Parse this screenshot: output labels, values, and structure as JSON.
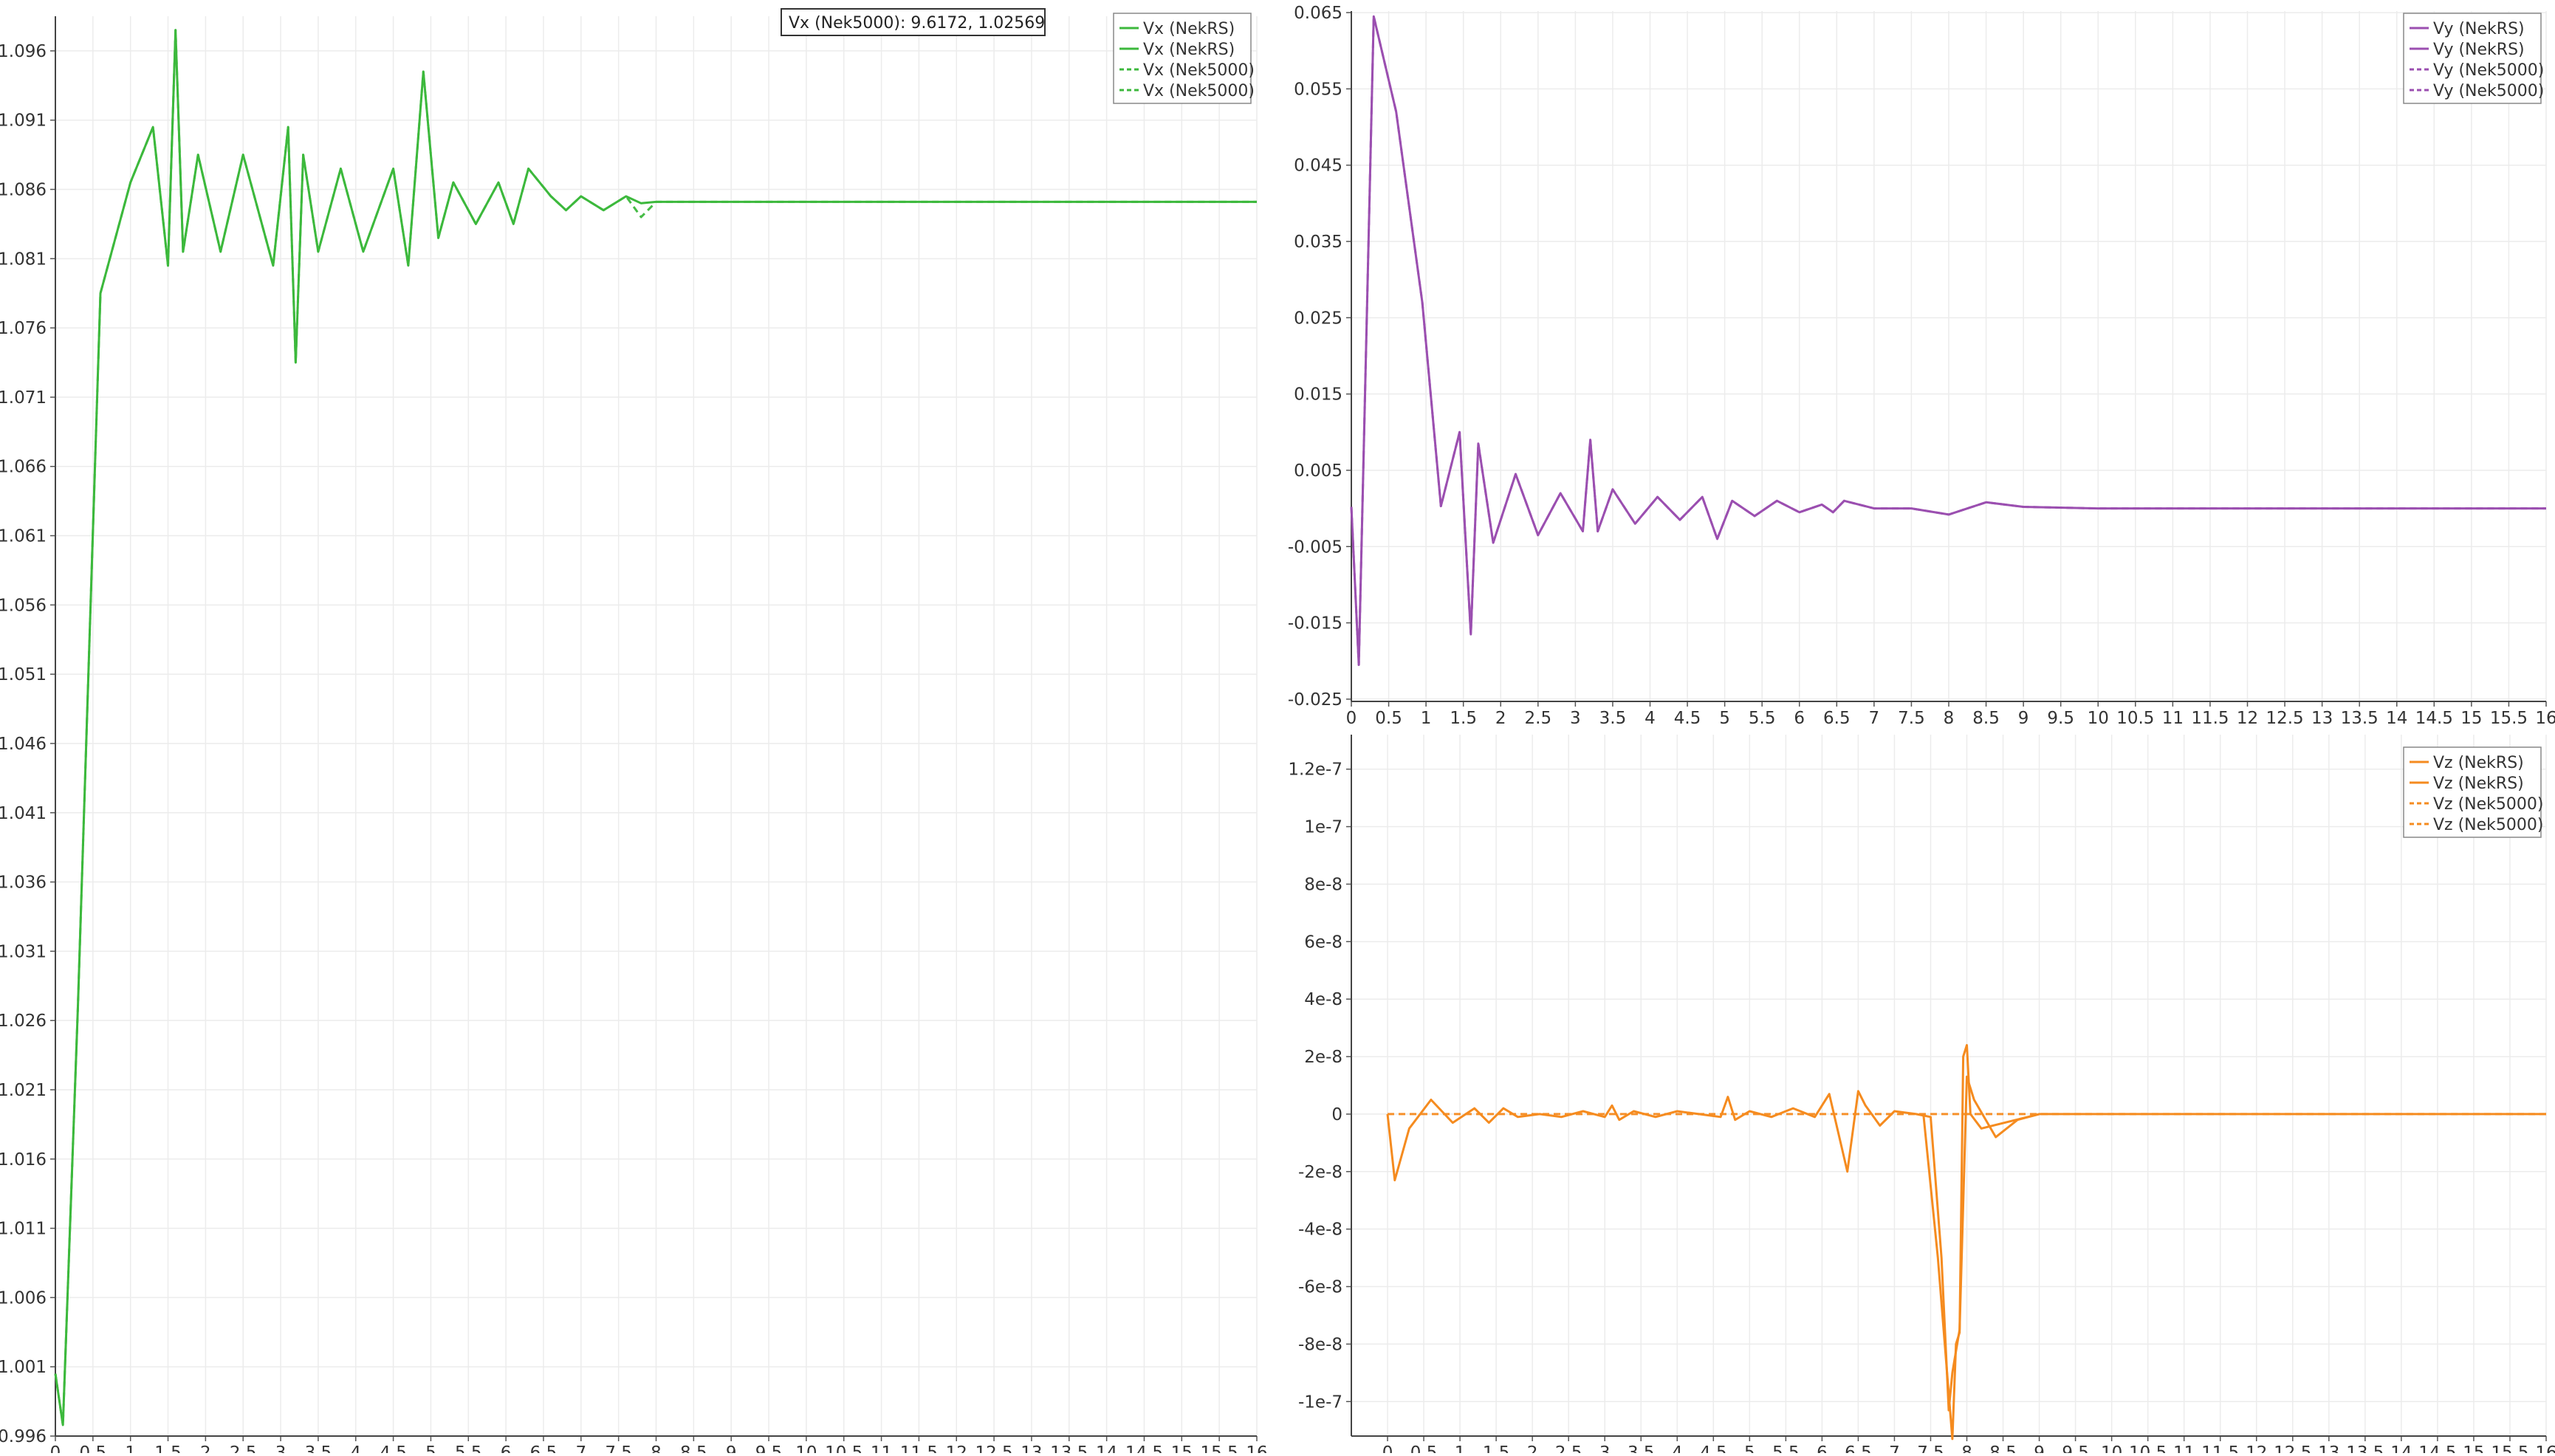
{
  "tooltip": {
    "text": "Vx (Nek5000): 9.6172,  1.02569"
  },
  "chart_data": [
    {
      "id": "vx",
      "type": "line",
      "color": "#3cb83c",
      "x_ticks": [
        "0",
        "0.5",
        "1",
        "1.5",
        "2",
        "2.5",
        "3",
        "3.5",
        "4",
        "4.5",
        "5",
        "5.5",
        "6",
        "6.5",
        "7",
        "7.5",
        "8",
        "8.5",
        "9",
        "9.5",
        "10",
        "10.5",
        "11",
        "11.5",
        "12",
        "12.5",
        "13",
        "13.5",
        "14",
        "14.5",
        "15",
        "15.5",
        "16"
      ],
      "y_ticks": [
        "0.996",
        "1.001",
        "1.006",
        "1.011",
        "1.016",
        "1.021",
        "1.026",
        "1.031",
        "1.036",
        "1.041",
        "1.046",
        "1.051",
        "1.056",
        "1.061",
        "1.066",
        "1.071",
        "1.076",
        "1.081",
        "1.086",
        "1.091",
        "1.096"
      ],
      "xlim": [
        0,
        16
      ],
      "ylim": [
        0.996,
        1.0985
      ],
      "legend": [
        "Vx (NekRS)",
        "Vx (NekRS)",
        "Vx (Nek5000)",
        "Vx (Nek5000)"
      ],
      "series": [
        {
          "name": "Vx (NekRS)",
          "style": "solid",
          "x": [
            0,
            0.1,
            0.3,
            0.6,
            1,
            1.3,
            1.5,
            1.6,
            1.7,
            1.9,
            2.2,
            2.5,
            2.9,
            3.1,
            3.2,
            3.3,
            3.5,
            3.8,
            4.1,
            4.5,
            4.7,
            4.9,
            5.1,
            5.3,
            5.6,
            5.9,
            6.1,
            6.3,
            6.6,
            6.8,
            7.0,
            7.3,
            7.6,
            7.8,
            8.0,
            8.2,
            9.0,
            10,
            12,
            14,
            16
          ],
          "y": [
            1.0005,
            0.9968,
            1.027,
            1.0785,
            1.0865,
            1.0905,
            1.0805,
            1.0975,
            1.0815,
            1.0885,
            1.0815,
            1.0885,
            1.0805,
            1.0905,
            1.0735,
            1.0885,
            1.0815,
            1.0875,
            1.0815,
            1.0875,
            1.0805,
            1.0945,
            1.0825,
            1.0865,
            1.0835,
            1.0865,
            1.0835,
            1.0875,
            1.0855,
            1.0845,
            1.0855,
            1.0845,
            1.0855,
            1.085,
            1.0851,
            1.0851,
            1.0851,
            1.0851,
            1.0851,
            1.0851,
            1.0851
          ]
        },
        {
          "name": "Vx (Nek5000)",
          "style": "dashed",
          "x": [
            0,
            0.1,
            0.3,
            0.6,
            1,
            1.3,
            1.5,
            1.6,
            1.7,
            1.9,
            2.2,
            2.5,
            2.9,
            3.1,
            3.2,
            3.3,
            3.5,
            3.8,
            4.1,
            4.5,
            4.7,
            4.9,
            5.1,
            5.3,
            5.6,
            5.9,
            6.1,
            6.3,
            6.6,
            6.8,
            7.0,
            7.3,
            7.6,
            7.8,
            8.0,
            8.2,
            9.0,
            10,
            12,
            14,
            16
          ],
          "y": [
            1.0005,
            0.9968,
            1.027,
            1.0785,
            1.0865,
            1.0905,
            1.0805,
            1.0975,
            1.0815,
            1.0885,
            1.0815,
            1.0885,
            1.0805,
            1.0905,
            1.0735,
            1.0885,
            1.0815,
            1.0875,
            1.0815,
            1.0875,
            1.0805,
            1.0945,
            1.0825,
            1.0865,
            1.0835,
            1.0865,
            1.0835,
            1.0875,
            1.0855,
            1.0845,
            1.0855,
            1.0845,
            1.0855,
            1.084,
            1.0851,
            1.0851,
            1.0851,
            1.0851,
            1.0851,
            1.0851,
            1.0851
          ]
        }
      ]
    },
    {
      "id": "vy",
      "type": "line",
      "color": "#9b4fb0",
      "x_ticks": [
        "0",
        "0.5",
        "1",
        "1.5",
        "2",
        "2.5",
        "3",
        "3.5",
        "4",
        "4.5",
        "5",
        "5.5",
        "6",
        "6.5",
        "7",
        "7.5",
        "8",
        "8.5",
        "9",
        "9.5",
        "10",
        "10.5",
        "11",
        "11.5",
        "12",
        "12.5",
        "13",
        "13.5",
        "14",
        "14.5",
        "15",
        "15.5",
        "16"
      ],
      "y_ticks": [
        "-0.025",
        "-0.015",
        "-0.005",
        "0.005",
        "0.015",
        "0.025",
        "0.035",
        "0.045",
        "0.055",
        "0.065"
      ],
      "xlim": [
        0,
        16
      ],
      "ylim": [
        -0.0253,
        0.0652
      ],
      "legend": [
        "Vy (NekRS)",
        "Vy (NekRS)",
        "Vy (Nek5000)",
        "Vy (Nek5000)"
      ],
      "series": [
        {
          "name": "Vy (NekRS)",
          "style": "solid",
          "x": [
            0,
            0.1,
            0.3,
            0.6,
            0.95,
            1.2,
            1.45,
            1.6,
            1.7,
            1.9,
            2.2,
            2.5,
            2.8,
            3.1,
            3.2,
            3.3,
            3.5,
            3.8,
            4.1,
            4.4,
            4.7,
            4.9,
            5.1,
            5.4,
            5.7,
            6.0,
            6.3,
            6.45,
            6.6,
            7.0,
            7.5,
            8.0,
            8.5,
            9.0,
            10,
            12,
            14,
            16
          ],
          "y": [
            0.0002,
            -0.0205,
            0.0645,
            0.052,
            0.027,
            0.0003,
            0.01,
            -0.0165,
            0.0085,
            -0.0045,
            0.0045,
            -0.0035,
            0.002,
            -0.003,
            0.009,
            -0.003,
            0.0025,
            -0.002,
            0.0015,
            -0.0015,
            0.0015,
            -0.004,
            0.001,
            -0.001,
            0.001,
            -0.0005,
            0.0005,
            -0.0005,
            0.001,
            0.0,
            0.0,
            -0.0008,
            0.0008,
            0.0002,
            0.0,
            0.0,
            0.0,
            0.0
          ]
        },
        {
          "name": "Vy (Nek5000)",
          "style": "dashed",
          "x": [
            0,
            0.1,
            0.3,
            0.6,
            0.95,
            1.2,
            1.45,
            1.6,
            1.7,
            1.9,
            2.2,
            2.5,
            2.8,
            3.1,
            3.2,
            3.3,
            3.5,
            3.8,
            4.1,
            4.4,
            4.7,
            4.9,
            5.1,
            5.4,
            5.7,
            6.0,
            6.3,
            6.45,
            6.6,
            7.0,
            7.5,
            8.0,
            8.5,
            9.0,
            10,
            12,
            14,
            16
          ],
          "y": [
            0.0002,
            -0.0205,
            0.0645,
            0.052,
            0.027,
            0.0003,
            0.01,
            -0.0165,
            0.0085,
            -0.0045,
            0.0045,
            -0.0035,
            0.002,
            -0.003,
            0.009,
            -0.003,
            0.0025,
            -0.002,
            0.0015,
            -0.0015,
            0.0015,
            -0.004,
            0.001,
            -0.001,
            0.001,
            -0.0005,
            0.0005,
            -0.0005,
            0.001,
            0.0,
            0.0,
            -0.0008,
            0.0008,
            0.0002,
            0.0,
            0.0,
            0.0,
            0.0
          ]
        }
      ]
    },
    {
      "id": "vz",
      "type": "line",
      "color": "#f58b1f",
      "x_ticks": [
        "0",
        "0.5",
        "1",
        "1.5",
        "2",
        "2.5",
        "3",
        "3.5",
        "4",
        "4.5",
        "5",
        "5.5",
        "6",
        "6.5",
        "7",
        "7.5",
        "8",
        "8.5",
        "9",
        "9.5",
        "10",
        "10.5",
        "11",
        "11.5",
        "12",
        "12.5",
        "13",
        "13.5",
        "14",
        "14.5",
        "15",
        "15.5",
        "16"
      ],
      "y_ticks": [
        "-1e-7",
        "-8e-8",
        "-6e-8",
        "-4e-8",
        "-2e-8",
        "0",
        "2e-8",
        "4e-8",
        "6e-8",
        "8e-8",
        "1e-7",
        "1.2e-7"
      ],
      "xlim": [
        -0.5,
        16
      ],
      "ylim": [
        -1.12e-07,
        1.32e-07
      ],
      "legend": [
        "Vz (NekRS)",
        "Vz (NekRS)",
        "Vz (Nek5000)",
        "Vz (Nek5000)"
      ],
      "series": [
        {
          "name": "Vz (NekRS)",
          "style": "solid",
          "x": [
            0,
            0.1,
            0.3,
            0.6,
            0.9,
            1.2,
            1.4,
            1.6,
            1.8,
            2.1,
            2.4,
            2.7,
            3.0,
            3.1,
            3.2,
            3.4,
            3.7,
            4.0,
            4.3,
            4.6,
            4.7,
            4.8,
            5.0,
            5.3,
            5.6,
            5.9,
            6.1,
            6.35,
            6.5,
            6.6,
            6.8,
            7.0,
            7.3,
            7.5,
            7.65,
            7.75,
            7.8,
            7.9,
            8.0,
            8.1,
            8.4,
            8.7,
            9.0,
            10,
            12,
            14,
            16
          ],
          "y": [
            0,
            -2.3e-08,
            -5e-09,
            5e-09,
            -3e-09,
            2e-09,
            -3e-09,
            2e-09,
            -1e-09,
            0,
            -1e-09,
            1e-09,
            -1e-09,
            3e-09,
            -2e-09,
            1e-09,
            -1e-09,
            1e-09,
            0,
            -1e-09,
            6e-09,
            -2e-09,
            1e-09,
            -1e-09,
            2e-09,
            -1e-09,
            7e-09,
            -2e-08,
            8e-09,
            3e-09,
            -4e-09,
            1e-09,
            0,
            -1e-09,
            -5e-08,
            -1.03e-07,
            -9e-08,
            -7.5e-08,
            1.3e-08,
            5e-09,
            -8e-09,
            -2e-09,
            0,
            0,
            0,
            0,
            0
          ]
        },
        {
          "name": "Vz (NekRS) b",
          "style": "solid",
          "x": [
            7.4,
            7.6,
            7.8,
            7.85,
            7.9,
            7.95,
            8.0,
            8.05,
            8.2,
            9.0
          ],
          "y": [
            0,
            -5e-08,
            -1.13e-07,
            -8e-08,
            -7.6e-08,
            2e-08,
            2.4e-08,
            0,
            -5e-09,
            0
          ]
        },
        {
          "name": "Vz (Nek5000)",
          "style": "dashed",
          "x": [
            0,
            2,
            4,
            6,
            8,
            10,
            12,
            14,
            16
          ],
          "y": [
            0,
            0,
            0,
            0,
            0,
            0,
            0,
            0,
            0
          ]
        }
      ]
    }
  ]
}
